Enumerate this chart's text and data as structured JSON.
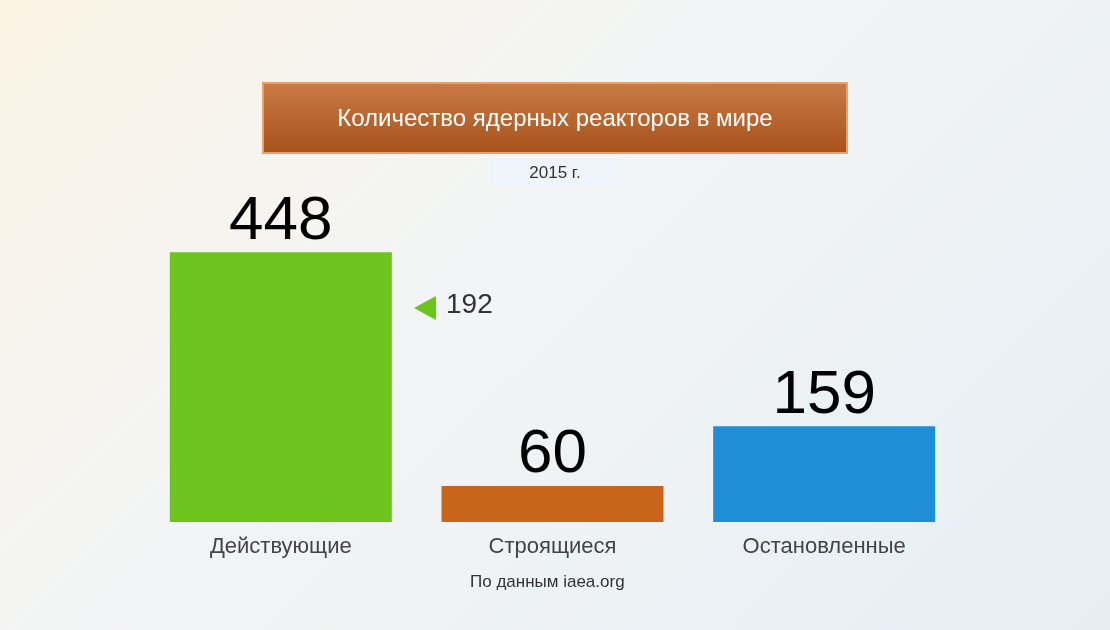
{
  "chart_data": {
    "type": "bar",
    "title": "Количество ядерных реакторов в мире",
    "subtitle": "2015 г.",
    "categories": [
      "Действующие",
      "Строящиеся",
      "Остановленные"
    ],
    "values": [
      448,
      60,
      159
    ],
    "colors": [
      "#6cc41c",
      "#c9641c",
      "#1f8ed6"
    ],
    "data_labels": true,
    "annotations": [
      "192",
      "По данным iaea.org"
    ]
  }
}
